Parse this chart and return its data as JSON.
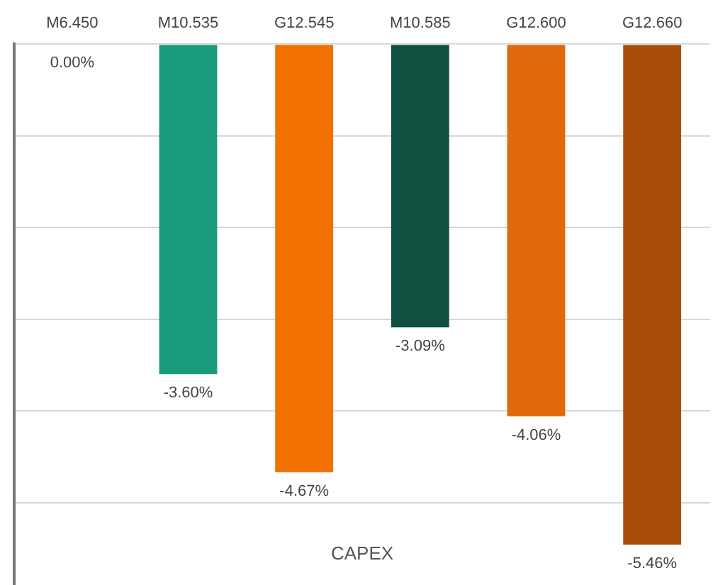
{
  "chart_data": {
    "type": "bar",
    "categories": [
      "M6.450",
      "M10.535",
      "G12.545",
      "M10.585",
      "G12.600",
      "G12.660"
    ],
    "values": [
      0,
      -3.6,
      -4.67,
      -3.09,
      -4.06,
      -5.46
    ],
    "colors": [
      "#1a9c7c",
      "#1a9c7c",
      "#f07000",
      "#0f5040",
      "#e06a0a",
      "#a84e08"
    ],
    "value_labels": [
      "0.00%",
      "-3.60%",
      "-4.67%",
      "-3.09%",
      "-4.06%",
      "-5.46%"
    ],
    "ylim": [
      -5.9,
      0
    ],
    "yticks": [
      {
        "value": 0,
        "label": null
      },
      {
        "value": -1,
        "label": null
      },
      {
        "value": -2,
        "label": null
      },
      {
        "value": -3,
        "label": null
      },
      {
        "value": -4,
        "label": null
      },
      {
        "value": -5,
        "label": null
      }
    ],
    "grid": "y",
    "tick_labels": "x",
    "annotations": [
      "CAPEX"
    ]
  }
}
